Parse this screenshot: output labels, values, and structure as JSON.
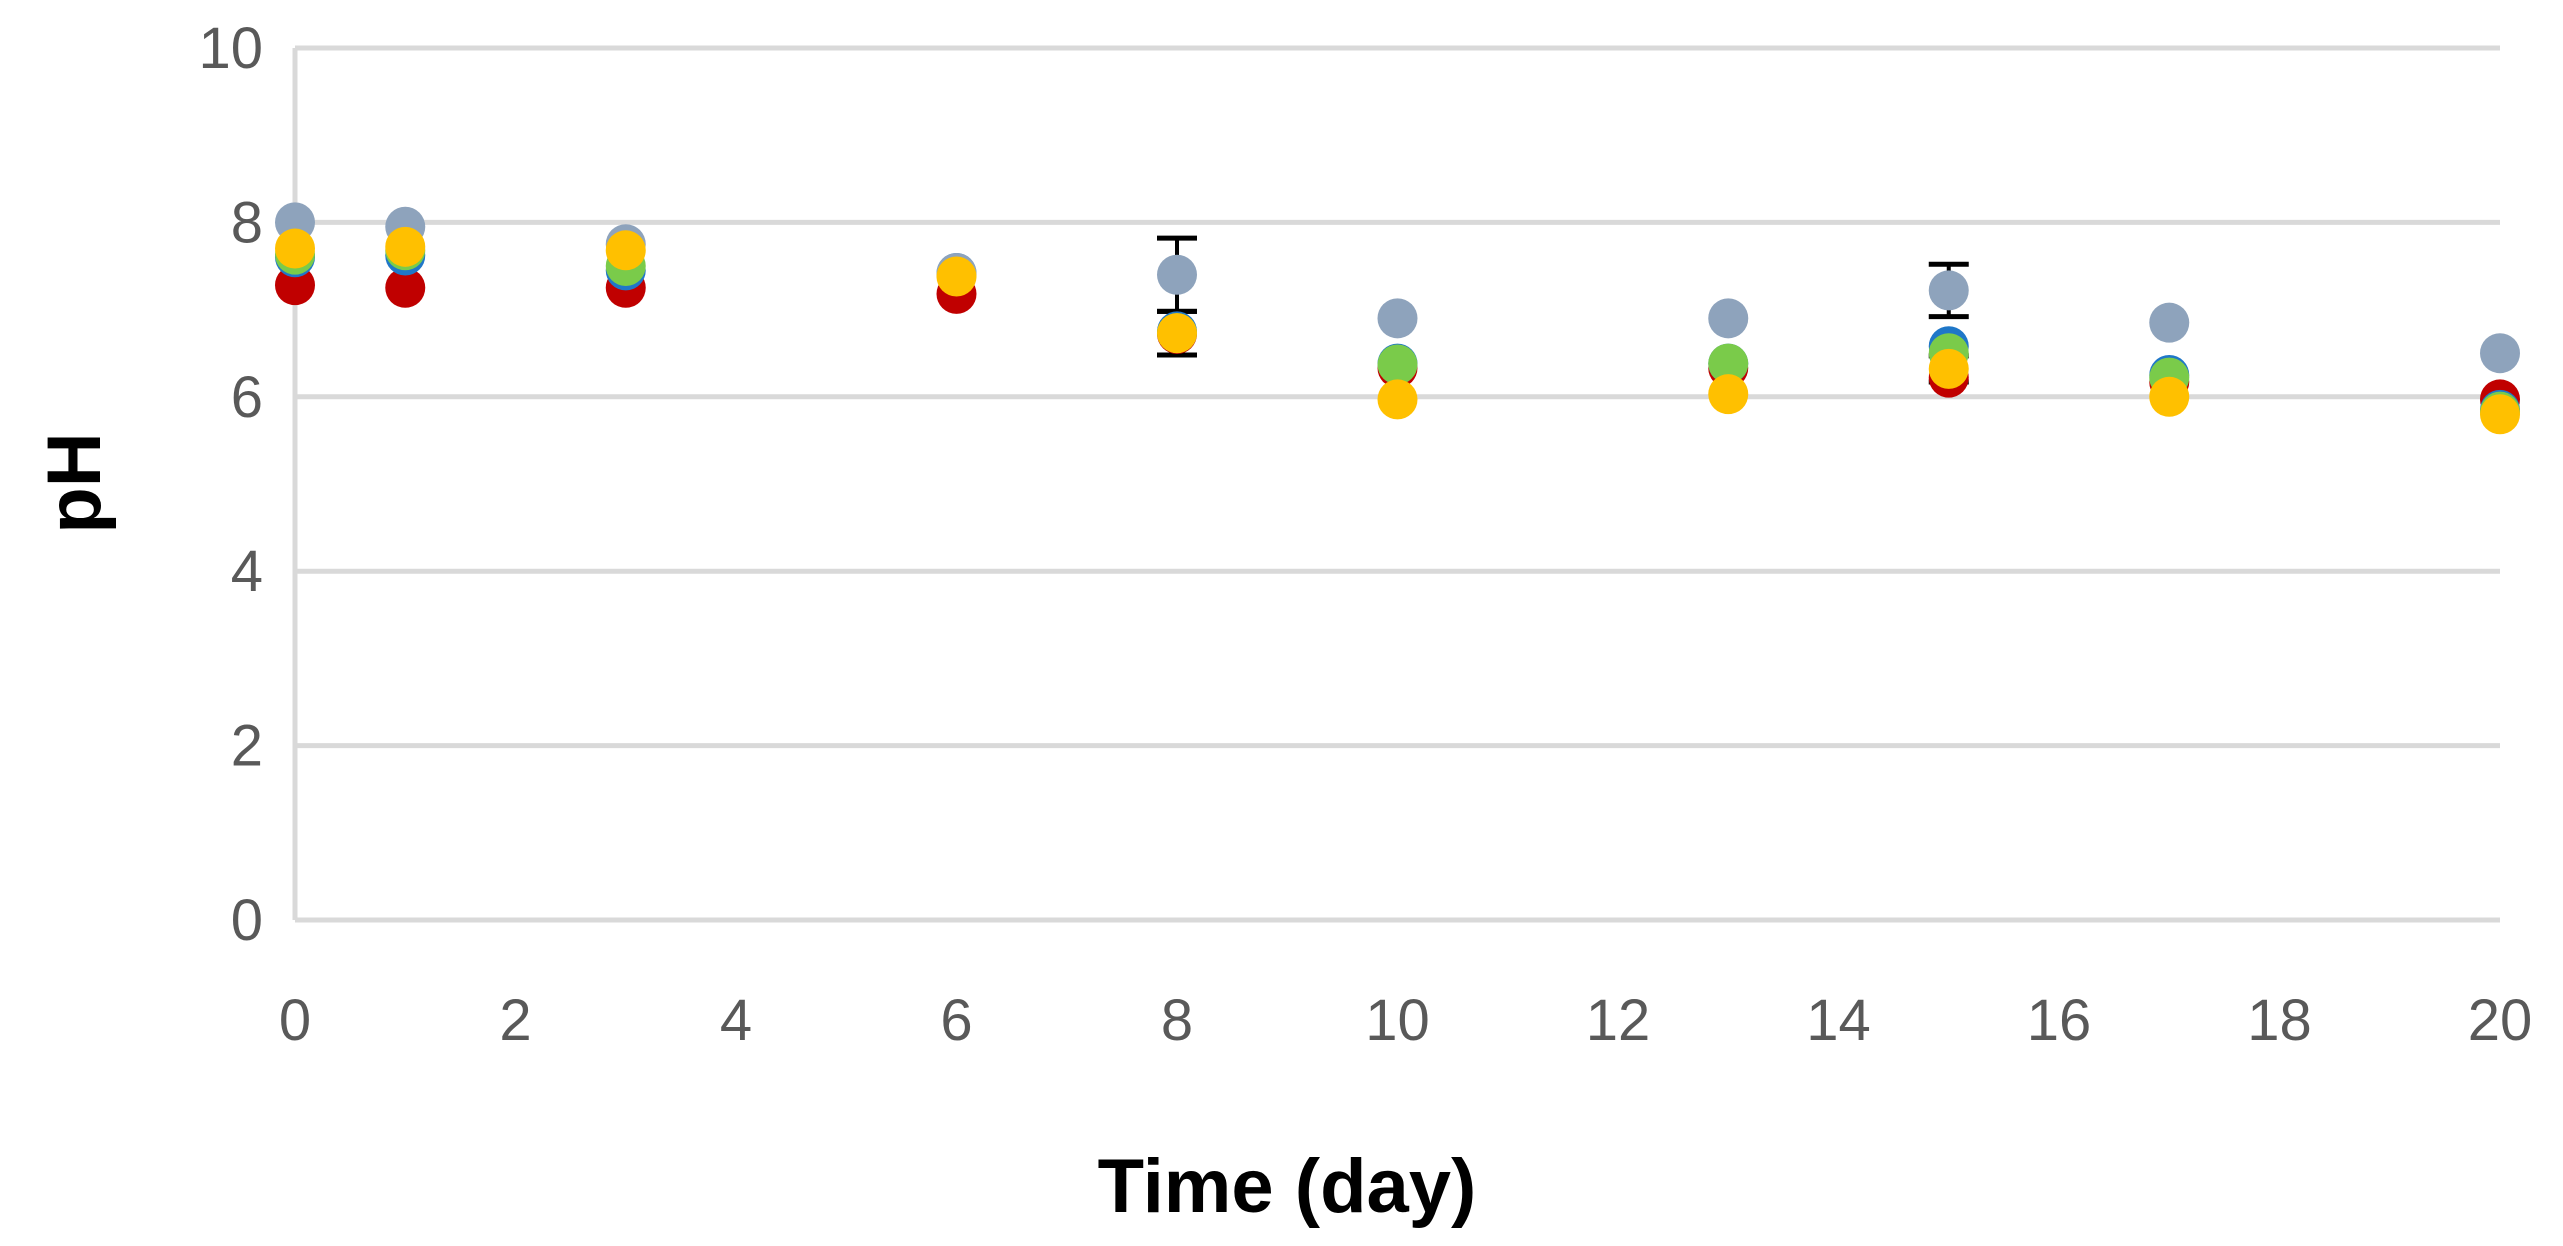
{
  "chart_data": {
    "type": "scatter",
    "title": "",
    "xlabel": "Time (day)",
    "ylabel": "pH",
    "xlim": [
      0,
      20
    ],
    "ylim": [
      0,
      10
    ],
    "x_ticks": [
      0,
      2,
      4,
      6,
      8,
      10,
      12,
      14,
      16,
      18,
      20
    ],
    "y_ticks": [
      0,
      2,
      4,
      6,
      8,
      10
    ],
    "x_tick_labels": [
      "0",
      "2",
      "4",
      "6",
      "8",
      "10",
      "12",
      "14",
      "16",
      "18",
      "20"
    ],
    "y_tick_labels": [
      "0",
      "2",
      "4",
      "6",
      "8",
      "10"
    ],
    "grid": "horizontal",
    "legend": "none",
    "series": [
      {
        "color": "#C00000",
        "x": [
          0,
          1,
          3,
          6,
          8,
          10,
          13,
          15,
          17,
          20
        ],
        "y": [
          7.28,
          7.25,
          7.25,
          7.18,
          6.72,
          6.33,
          6.33,
          6.22,
          6.17,
          5.97
        ]
      },
      {
        "color": "#1F77C8",
        "x": [
          0,
          1,
          3,
          6,
          8,
          10,
          13,
          15,
          17,
          20
        ],
        "y": [
          7.6,
          7.62,
          7.45,
          7.42,
          6.75,
          6.38,
          6.38,
          6.58,
          6.25,
          5.85
        ]
      },
      {
        "color": "#7ACB4A",
        "x": [
          0,
          1,
          3,
          6,
          8,
          10,
          13,
          15,
          17,
          20
        ],
        "y": [
          7.63,
          7.68,
          7.5,
          7.4,
          6.73,
          6.37,
          6.38,
          6.5,
          6.22,
          5.83
        ]
      },
      {
        "color": "#8EA3BC",
        "x": [
          0,
          1,
          3,
          6,
          8,
          10,
          13,
          15,
          17,
          20
        ],
        "y": [
          8.0,
          7.95,
          7.75,
          7.42,
          7.4,
          6.9,
          6.9,
          7.22,
          6.85,
          6.5
        ],
        "error": [
          0.05,
          0.05,
          0.05,
          0.05,
          0.42,
          0.05,
          0.05,
          0.3,
          0.05,
          0.05
        ]
      },
      {
        "color": "#FFC000",
        "x": [
          0,
          1,
          3,
          6,
          8,
          10,
          13,
          15,
          17,
          20
        ],
        "y": [
          7.7,
          7.72,
          7.68,
          7.38,
          6.73,
          5.97,
          6.03,
          6.32,
          6.0,
          5.8
        ],
        "error": [
          0.05,
          0.05,
          0.05,
          0.05,
          0.25,
          0.05,
          0.05,
          0.15,
          0.05,
          0.05
        ]
      }
    ]
  }
}
